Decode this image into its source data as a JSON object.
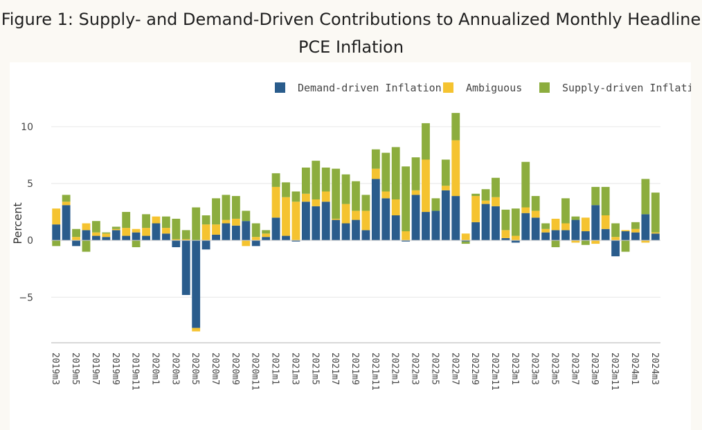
{
  "title": "Figure 1: Supply- and Demand-Driven Contributions to Annualized Monthly Headline PCE Inflation",
  "chart_data": {
    "type": "bar",
    "stacked": true,
    "ylabel": "Percent",
    "xlabel": "",
    "ylim": [
      -9,
      12
    ],
    "yticks": [
      -5,
      0,
      5,
      10
    ],
    "yticklabels": [
      "−5",
      "0",
      "5",
      "10"
    ],
    "grid": true,
    "legend_position": "top-right",
    "categories": [
      "2019m3",
      "2019m4",
      "2019m5",
      "2019m6",
      "2019m7",
      "2019m8",
      "2019m9",
      "2019m10",
      "2019m11",
      "2019m12",
      "2020m1",
      "2020m2",
      "2020m3",
      "2020m4",
      "2020m5",
      "2020m6",
      "2020m7",
      "2020m8",
      "2020m9",
      "2020m10",
      "2020m11",
      "2020m12",
      "2021m1",
      "2021m2",
      "2021m3",
      "2021m4",
      "2021m5",
      "2021m6",
      "2021m7",
      "2021m8",
      "2021m9",
      "2021m10",
      "2021m11",
      "2021m12",
      "2022m1",
      "2022m2",
      "2022m3",
      "2022m4",
      "2022m5",
      "2022m6",
      "2022m7",
      "2022m8",
      "2022m9",
      "2022m10",
      "2022m11",
      "2022m12",
      "2023m1",
      "2023m2",
      "2023m3",
      "2023m4",
      "2023m5",
      "2023m6",
      "2023m7",
      "2023m8",
      "2023m9",
      "2023m10",
      "2023m11",
      "2023m12",
      "2024m1",
      "2024m2",
      "2024m3"
    ],
    "xticklabels": [
      "2019m3",
      "",
      "2019m5",
      "",
      "2019m7",
      "",
      "2019m9",
      "",
      "2019m11",
      "",
      "2020m1",
      "",
      "2020m3",
      "",
      "2020m5",
      "",
      "2020m7",
      "",
      "2020m9",
      "",
      "2020m11",
      "",
      "2021m1",
      "",
      "2021m3",
      "",
      "2021m5",
      "",
      "2021m7",
      "",
      "2021m9",
      "",
      "2021m11",
      "",
      "2022m1",
      "",
      "2022m3",
      "",
      "2022m5",
      "",
      "2022m7",
      "",
      "2022m9",
      "",
      "2022m11",
      "",
      "2023m1",
      "",
      "2023m3",
      "",
      "2023m5",
      "",
      "2023m7",
      "",
      "2023m9",
      "",
      "2023m11",
      "",
      "2024m1",
      "",
      "2024m3"
    ],
    "series": [
      {
        "name": "Demand-driven Inflation",
        "color": "#2a5c8c",
        "values": [
          1.4,
          3.1,
          -0.5,
          0.9,
          0.4,
          0.3,
          0.9,
          0.4,
          0.7,
          0.4,
          1.5,
          0.6,
          -0.6,
          -4.8,
          -7.7,
          -0.8,
          0.5,
          1.5,
          1.3,
          1.7,
          -0.5,
          0.3,
          2.0,
          0.4,
          -0.1,
          3.4,
          3.0,
          3.4,
          1.8,
          1.5,
          1.8,
          0.9,
          5.4,
          3.7,
          2.2,
          -0.1,
          4.0,
          2.5,
          2.6,
          4.4,
          3.9,
          -0.1,
          1.6,
          3.2,
          3.0,
          0.2,
          -0.2,
          2.4,
          2.0,
          0.7,
          0.9,
          0.9,
          1.8,
          0.8,
          3.1,
          1.0,
          -1.4,
          0.8,
          0.7,
          2.3,
          0.6
        ]
      },
      {
        "name": "Ambiguous",
        "color": "#f5c330",
        "values": [
          1.4,
          0.3,
          0.3,
          0.6,
          0.3,
          0.3,
          0.1,
          0.7,
          0.3,
          0.7,
          0.6,
          0.5,
          0.1,
          0.1,
          -0.3,
          1.4,
          0.9,
          0.3,
          0.6,
          -0.5,
          0.3,
          0.3,
          2.7,
          3.4,
          3.4,
          0.7,
          0.6,
          0.9,
          0.1,
          1.7,
          0.8,
          1.7,
          0.9,
          0.6,
          1.4,
          0.8,
          0.4,
          4.6,
          0.0,
          0.4,
          4.9,
          0.6,
          2.3,
          0.3,
          0.8,
          0.7,
          0.4,
          0.5,
          0.6,
          0.3,
          1.0,
          0.6,
          -0.2,
          1.2,
          -0.3,
          1.2,
          0.3,
          0.1,
          0.3,
          -0.2,
          0.1
        ]
      },
      {
        "name": "Supply-driven Inflation",
        "color": "#8cad3e",
        "values": [
          -0.5,
          0.6,
          0.7,
          -1.0,
          1.0,
          0.1,
          0.2,
          1.4,
          -0.6,
          1.2,
          0.0,
          1.0,
          1.8,
          0.8,
          2.9,
          0.8,
          2.3,
          2.2,
          2.0,
          0.9,
          1.2,
          0.3,
          1.2,
          1.3,
          0.9,
          2.3,
          3.4,
          2.1,
          4.4,
          2.6,
          2.6,
          1.4,
          1.7,
          3.4,
          4.6,
          5.7,
          2.9,
          3.2,
          1.1,
          2.3,
          2.4,
          -0.2,
          0.2,
          1.0,
          1.7,
          1.8,
          2.4,
          4.0,
          1.3,
          0.5,
          -0.6,
          2.2,
          0.3,
          -0.4,
          1.6,
          2.5,
          1.2,
          -1.0,
          0.6,
          3.1,
          3.5
        ]
      }
    ]
  }
}
